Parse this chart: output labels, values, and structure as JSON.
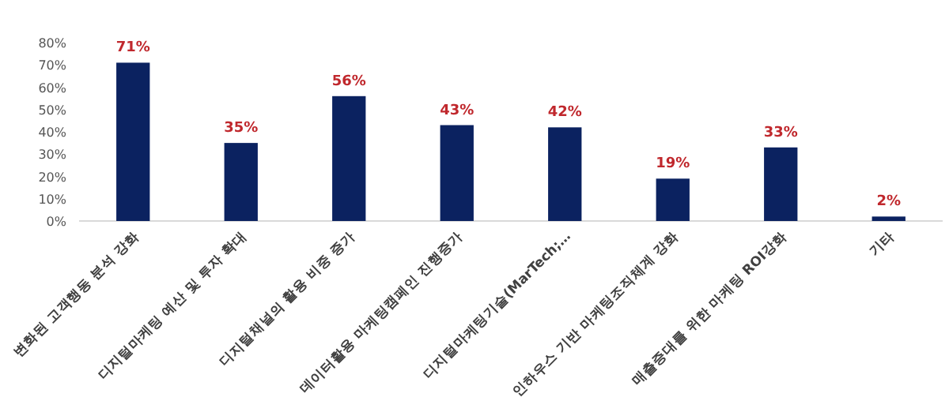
{
  "chart_data": {
    "type": "bar",
    "categories": [
      "변화된 고객행동 분석 강화",
      "디지털마케팅 예산 및 투자 확대",
      "디지털채널의 활용 비중 증가",
      "데이터활용 마케팅캠페인 진행증가",
      "디지털마케팅기술(MarTech;…",
      "인하우스 기반 마케팅조직체계 강화",
      "매출증대를 위한 마케팅 ROI강화",
      "기타"
    ],
    "series": [
      {
        "color": "#0b2260",
        "values": [
          71,
          35,
          56,
          43,
          42,
          19,
          33,
          2
        ]
      }
    ],
    "value_labels": [
      "71%",
      "35%",
      "56%",
      "43%",
      "42%",
      "19%",
      "33%",
      "2%"
    ],
    "ylim": [
      0,
      80
    ],
    "yticks": [
      {
        "value": 0,
        "label": "0%"
      },
      {
        "value": 10,
        "label": "10%"
      },
      {
        "value": 20,
        "label": "20%"
      },
      {
        "value": 30,
        "label": "30%"
      },
      {
        "value": 40,
        "label": "40%"
      },
      {
        "value": 50,
        "label": "50%"
      },
      {
        "value": 60,
        "label": "60%"
      },
      {
        "value": 70,
        "label": "70%"
      },
      {
        "value": 80,
        "label": "80%"
      }
    ],
    "grid": false
  }
}
